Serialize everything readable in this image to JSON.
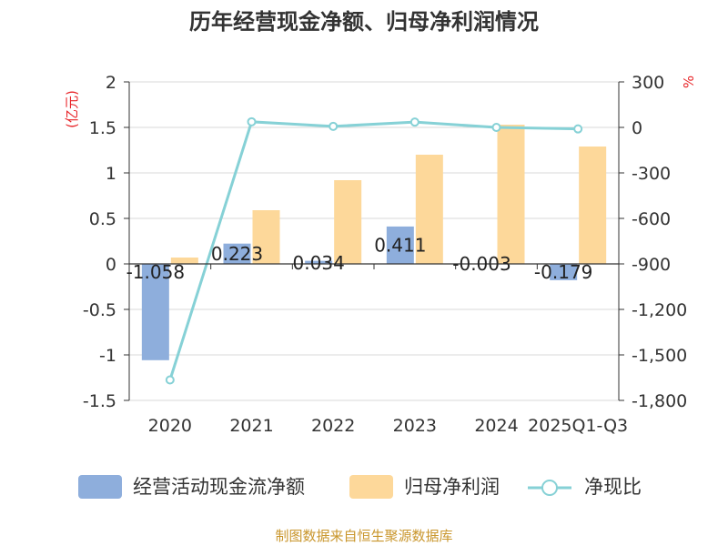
{
  "chart_data": {
    "type": "bar+line",
    "title": "历年经营现金净额、归母净利润情况",
    "categories": [
      "2020",
      "2021",
      "2022",
      "2023",
      "2024",
      "2025Q1-Q3"
    ],
    "y_left": {
      "unit": "(亿元)",
      "min": -1.5,
      "max": 2,
      "ticks": [
        "2",
        "1.5",
        "1",
        "0.5",
        "0",
        "-0.5",
        "-1",
        "-1.5"
      ],
      "tick_values": [
        2,
        1.5,
        1,
        0.5,
        0,
        -0.5,
        -1,
        -1.5
      ]
    },
    "y_right": {
      "unit": "%",
      "min": -1800,
      "max": 300,
      "ticks": [
        "300",
        "0",
        "-300",
        "-600",
        "-900",
        "-1,200",
        "-1,500",
        "-1,800"
      ],
      "tick_values": [
        300,
        0,
        -300,
        -600,
        -900,
        -1200,
        -1500,
        -1800
      ]
    },
    "series": [
      {
        "name": "经营活动现金流净额",
        "type": "bar",
        "axis": "left",
        "color": "#8eaedc",
        "values": [
          -1.058,
          0.223,
          0.034,
          0.411,
          -0.003,
          -0.179
        ],
        "labels": [
          "-1.058",
          "0.223",
          "0.034",
          "0.411",
          "-0.003",
          "-0.179"
        ]
      },
      {
        "name": "归母净利润",
        "type": "bar",
        "axis": "left",
        "color": "#fdd89a",
        "values": [
          0.07,
          0.59,
          0.92,
          1.2,
          1.53,
          1.29
        ]
      },
      {
        "name": "净现比",
        "type": "line",
        "axis": "right",
        "color": "#86d1d6",
        "values": [
          -1665,
          37,
          7,
          35,
          0,
          -10
        ]
      }
    ],
    "legend_position": "bottom",
    "source": "制图数据来自恒生聚源数据库"
  }
}
